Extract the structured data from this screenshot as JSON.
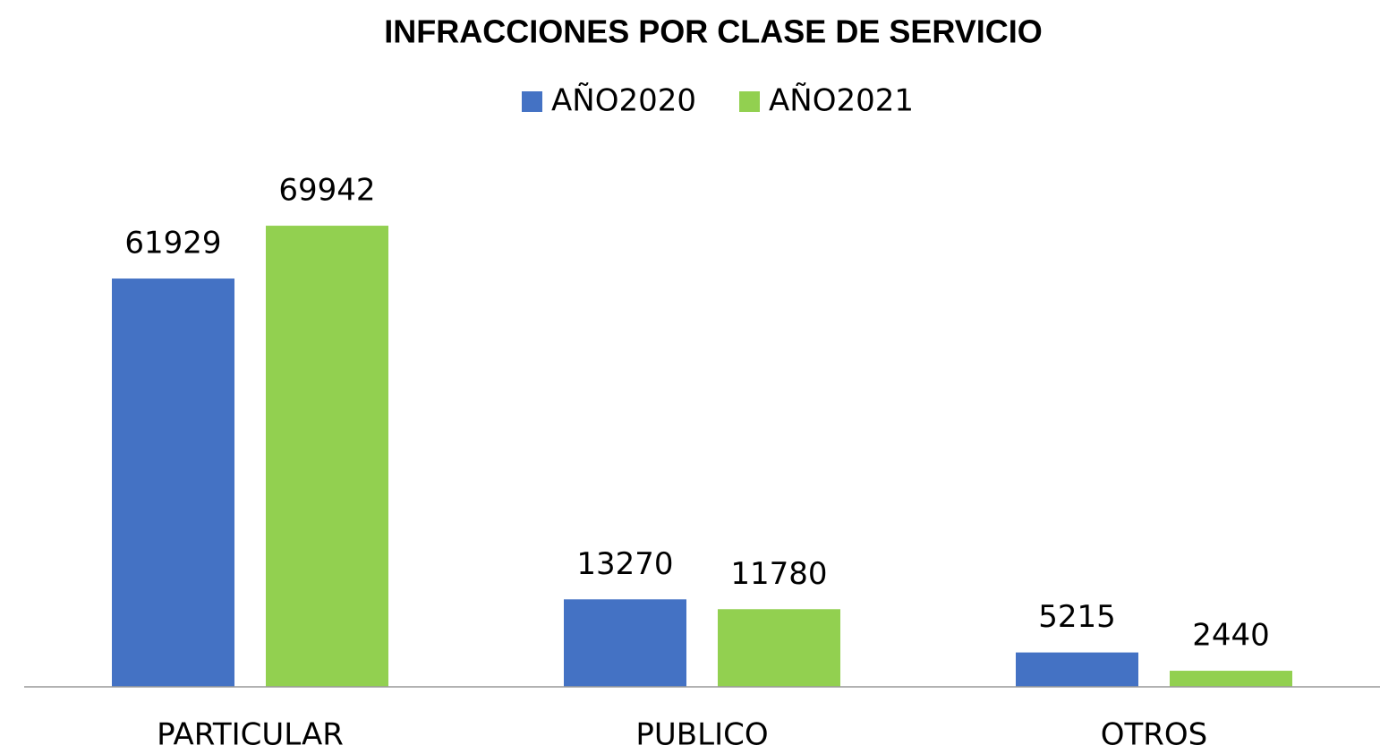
{
  "chart_data": {
    "type": "bar",
    "title": "INFRACCIONES POR CLASE DE SERVICIO",
    "categories": [
      "PARTICULAR",
      "PUBLICO",
      "OTROS"
    ],
    "series": [
      {
        "name": "AÑO2020",
        "color": "#4472c4",
        "values": [
          61929,
          13270,
          5215
        ]
      },
      {
        "name": "AÑO2021",
        "color": "#92d050",
        "values": [
          69942,
          11780,
          2440
        ]
      }
    ],
    "ylim": [
      0,
      80000
    ],
    "legend": "top"
  }
}
